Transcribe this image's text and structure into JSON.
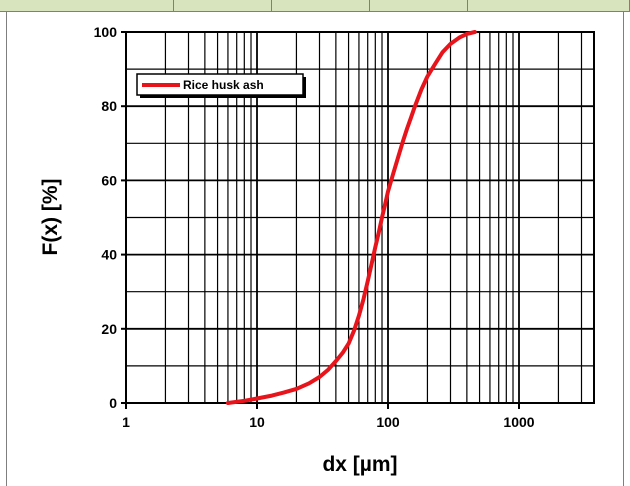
{
  "chart_data": {
    "type": "line",
    "title": "",
    "xlabel": "dx [µm]",
    "ylabel": "F(x) [%]",
    "xscale": "log",
    "xlim": [
      1,
      3500
    ],
    "ylim": [
      0,
      100
    ],
    "x_tick_labels": [
      "1",
      "10",
      "100",
      "1000"
    ],
    "y_tick_labels": [
      "0",
      "20",
      "40",
      "60",
      "80",
      "100"
    ],
    "grid": true,
    "legend_position": "top-left",
    "series": [
      {
        "name": "Rice husk ash",
        "color": "#e8141b",
        "x": [
          6,
          8,
          10,
          13,
          16,
          20,
          25,
          30,
          35,
          40,
          45,
          50,
          55,
          60,
          65,
          70,
          75,
          80,
          85,
          90,
          95,
          100,
          110,
          120,
          130,
          140,
          150,
          160,
          180,
          200,
          230,
          260,
          300,
          350,
          400,
          460
        ],
        "y": [
          0,
          0.6,
          1.2,
          2.0,
          2.8,
          3.8,
          5.3,
          7.0,
          9.0,
          11.3,
          13.5,
          16.0,
          19.5,
          23.5,
          28.0,
          32.8,
          37.5,
          42.0,
          46.0,
          50.0,
          53.5,
          57.0,
          62.0,
          66.5,
          70.5,
          74.0,
          77.0,
          79.8,
          84.5,
          88.0,
          91.5,
          94.5,
          96.8,
          98.5,
          99.5,
          100
        ]
      }
    ]
  }
}
